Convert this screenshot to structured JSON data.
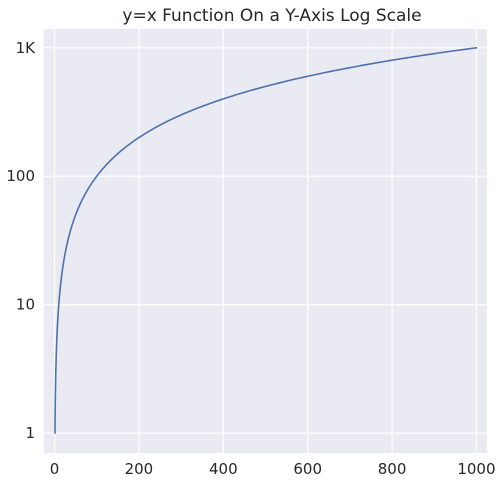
{
  "chart_data": {
    "type": "line",
    "title": "y=x Function On a Y-Axis Log Scale",
    "xlabel": "",
    "ylabel": "",
    "xlim": [
      -25,
      1025
    ],
    "ylim": [
      0.7,
      1400
    ],
    "yscale": "log",
    "grid": true,
    "legend": "none",
    "colors": {
      "background": "#eaeaf2",
      "grid": "#ffffff",
      "line": "#4c72b0",
      "text": "#262626"
    },
    "x_ticks": [
      {
        "value": 0,
        "label": "0"
      },
      {
        "value": 200,
        "label": "200"
      },
      {
        "value": 400,
        "label": "400"
      },
      {
        "value": 600,
        "label": "600"
      },
      {
        "value": 800,
        "label": "800"
      },
      {
        "value": 1000,
        "label": "1000"
      }
    ],
    "y_ticks": [
      {
        "value": 1,
        "label": "1"
      },
      {
        "value": 10,
        "label": "10"
      },
      {
        "value": 100,
        "label": "100"
      },
      {
        "value": 1000,
        "label": "1K"
      }
    ],
    "series": [
      {
        "x": [
          1,
          2,
          3,
          5,
          8,
          12,
          20,
          30,
          50,
          75,
          100,
          150,
          200,
          250,
          300,
          400,
          500,
          600,
          700,
          800,
          900,
          1000
        ],
        "y": [
          1,
          2,
          3,
          5,
          8,
          12,
          20,
          30,
          50,
          75,
          100,
          150,
          200,
          250,
          300,
          400,
          500,
          600,
          700,
          800,
          900,
          1000
        ]
      }
    ]
  }
}
